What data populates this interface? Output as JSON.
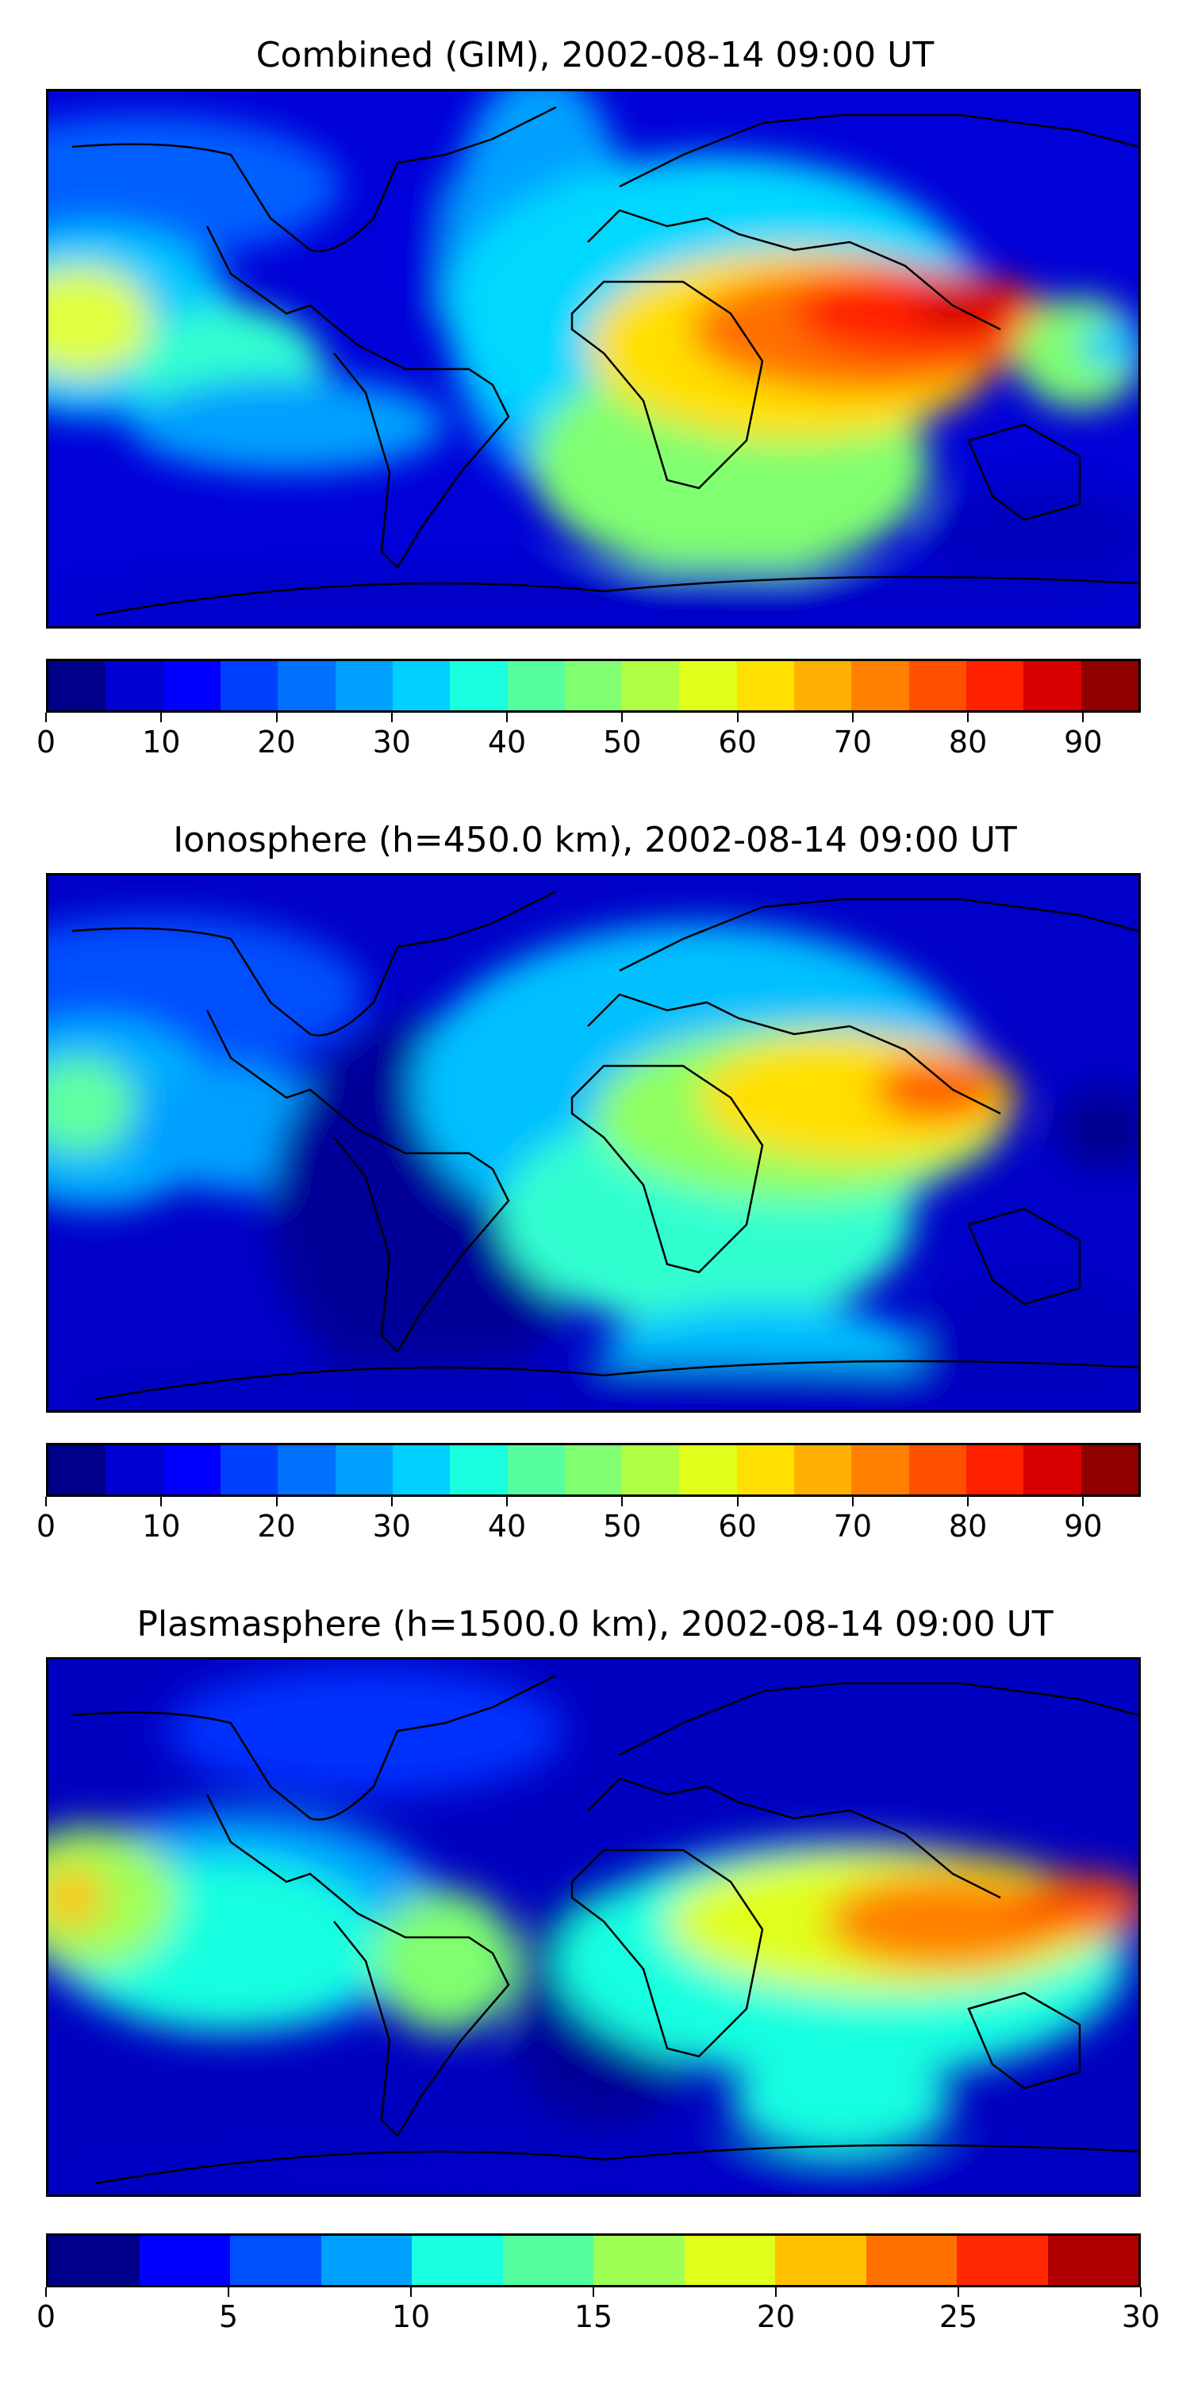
{
  "panels": [
    {
      "title": "Combined (GIM), 2002-08-14 09:00 UT",
      "colorbar": {
        "ticks": [
          "0",
          "10",
          "20",
          "30",
          "40",
          "50",
          "60",
          "70",
          "80",
          "90"
        ],
        "colors": [
          "#00008b",
          "#0000d0",
          "#0000ff",
          "#0040ff",
          "#0070ff",
          "#00a0ff",
          "#00d0ff",
          "#19ffe0",
          "#55ff9f",
          "#80ff70",
          "#b0ff45",
          "#e0ff1a",
          "#ffe000",
          "#ffb000",
          "#ff8000",
          "#ff5000",
          "#ff2000",
          "#d80000",
          "#900000"
        ]
      }
    },
    {
      "title": "Ionosphere  (h=450.0 km), 2002-08-14 09:00 UT",
      "colorbar": {
        "ticks": [
          "0",
          "10",
          "20",
          "30",
          "40",
          "50",
          "60",
          "70",
          "80",
          "90"
        ],
        "colors": [
          "#00008b",
          "#0000d0",
          "#0000ff",
          "#0040ff",
          "#0070ff",
          "#00a0ff",
          "#00d0ff",
          "#19ffe0",
          "#55ff9f",
          "#80ff70",
          "#b0ff45",
          "#e0ff1a",
          "#ffe000",
          "#ffb000",
          "#ff8000",
          "#ff5000",
          "#ff2000",
          "#d80000",
          "#900000"
        ]
      }
    },
    {
      "title": "Plasmasphere (h=1500.0 km), 2002-08-14 09:00 UT",
      "colorbar": {
        "ticks": [
          "0",
          "5",
          "10",
          "15",
          "20",
          "25",
          "30"
        ],
        "colors": [
          "#00008b",
          "#0000ff",
          "#0050ff",
          "#00a0ff",
          "#19ffe0",
          "#55ff9f",
          "#a0ff55",
          "#e0ff1a",
          "#ffc000",
          "#ff7000",
          "#ff2800",
          "#b00000"
        ]
      }
    }
  ]
}
